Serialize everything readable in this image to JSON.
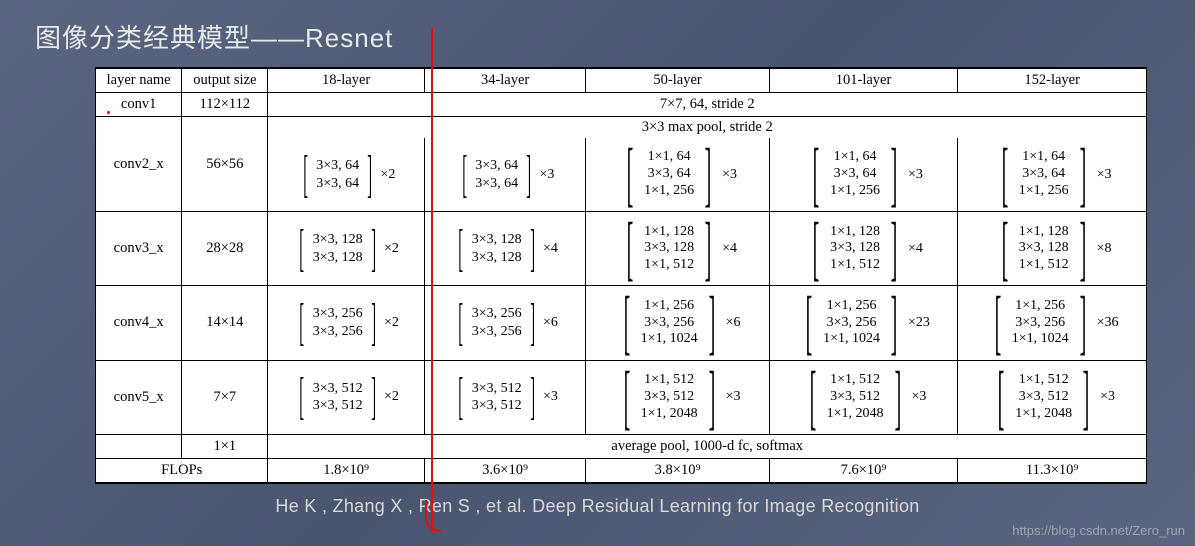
{
  "title": "图像分类经典模型——Resnet",
  "citation": "He K , Zhang X , Ren S , et al. Deep Residual Learning for Image Recognition",
  "watermark": "https://blog.csdn.net/Zero_run",
  "headers": [
    "layer name",
    "output size",
    "18-layer",
    "34-layer",
    "50-layer",
    "101-layer",
    "152-layer"
  ],
  "conv1": {
    "name": "conv1",
    "size": "112×112",
    "desc": "7×7, 64, stride 2"
  },
  "pool": "3×3 max pool, stride 2",
  "rows": [
    {
      "name": "conv2_x",
      "size": "56×56",
      "cells": [
        {
          "lines": [
            "3×3, 64",
            "3×3, 64"
          ],
          "mult": "×2"
        },
        {
          "lines": [
            "3×3, 64",
            "3×3, 64"
          ],
          "mult": "×3"
        },
        {
          "lines": [
            "1×1, 64",
            "3×3, 64",
            "1×1, 256"
          ],
          "mult": "×3"
        },
        {
          "lines": [
            "1×1, 64",
            "3×3, 64",
            "1×1, 256"
          ],
          "mult": "×3"
        },
        {
          "lines": [
            "1×1, 64",
            "3×3, 64",
            "1×1, 256"
          ],
          "mult": "×3"
        }
      ]
    },
    {
      "name": "conv3_x",
      "size": "28×28",
      "cells": [
        {
          "lines": [
            "3×3, 128",
            "3×3, 128"
          ],
          "mult": "×2"
        },
        {
          "lines": [
            "3×3, 128",
            "3×3, 128"
          ],
          "mult": "×4"
        },
        {
          "lines": [
            "1×1, 128",
            "3×3, 128",
            "1×1, 512"
          ],
          "mult": "×4"
        },
        {
          "lines": [
            "1×1, 128",
            "3×3, 128",
            "1×1, 512"
          ],
          "mult": "×4"
        },
        {
          "lines": [
            "1×1, 128",
            "3×3, 128",
            "1×1, 512"
          ],
          "mult": "×8"
        }
      ]
    },
    {
      "name": "conv4_x",
      "size": "14×14",
      "cells": [
        {
          "lines": [
            "3×3, 256",
            "3×3, 256"
          ],
          "mult": "×2"
        },
        {
          "lines": [
            "3×3, 256",
            "3×3, 256"
          ],
          "mult": "×6"
        },
        {
          "lines": [
            "1×1, 256",
            "3×3, 256",
            "1×1, 1024"
          ],
          "mult": "×6"
        },
        {
          "lines": [
            "1×1, 256",
            "3×3, 256",
            "1×1, 1024"
          ],
          "mult": "×23"
        },
        {
          "lines": [
            "1×1, 256",
            "3×3, 256",
            "1×1, 1024"
          ],
          "mult": "×36"
        }
      ]
    },
    {
      "name": "conv5_x",
      "size": "7×7",
      "cells": [
        {
          "lines": [
            "3×3, 512",
            "3×3, 512"
          ],
          "mult": "×2"
        },
        {
          "lines": [
            "3×3, 512",
            "3×3, 512"
          ],
          "mult": "×3"
        },
        {
          "lines": [
            "1×1, 512",
            "3×3, 512",
            "1×1, 2048"
          ],
          "mult": "×3"
        },
        {
          "lines": [
            "1×1, 512",
            "3×3, 512",
            "1×1, 2048"
          ],
          "mult": "×3"
        },
        {
          "lines": [
            "1×1, 512",
            "3×3, 512",
            "1×1, 2048"
          ],
          "mult": "×3"
        }
      ]
    }
  ],
  "final": {
    "size": "1×1",
    "desc": "average pool, 1000-d fc, softmax"
  },
  "flops": {
    "label": "FLOPs",
    "values": [
      "1.8×10⁹",
      "3.6×10⁹",
      "3.8×10⁹",
      "7.6×10⁹",
      "11.3×10⁹"
    ]
  },
  "col_widths": [
    "80px",
    "80px",
    "145px",
    "150px",
    "170px",
    "175px",
    "175px"
  ]
}
